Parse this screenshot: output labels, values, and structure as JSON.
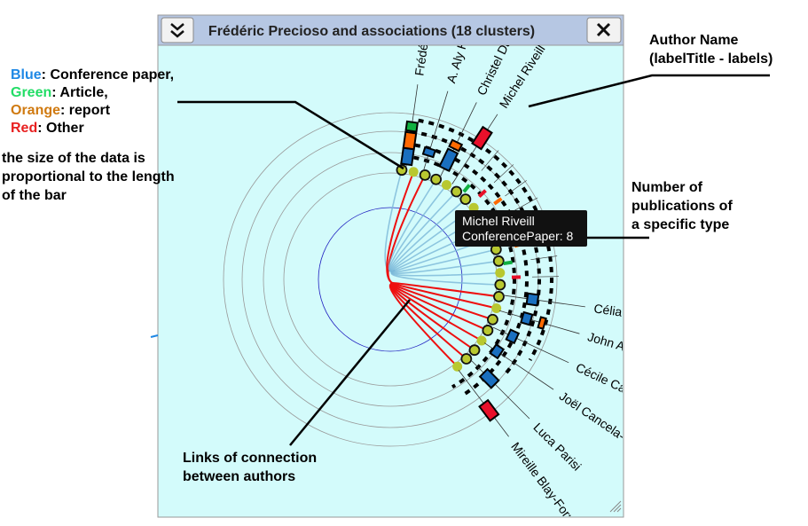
{
  "window": {
    "title": "Frédéric Precioso and associations (18 clusters)"
  },
  "authors": [
    "Frédéric Pr",
    "A. Aly Halim",
    "Christel Dartigu",
    "Michel Riveill",
    "Célia da Co",
    "John Anderso",
    "Cécile Camillieri",
    "Joël Cancela-Vaz",
    "Luca Parisi",
    "Mireille Blay-Fornarin"
  ],
  "tooltip": {
    "name": "Michel Riveill",
    "detail": "ConferencePaper: 8"
  },
  "legend": [
    {
      "color_name": "Blue",
      "text": ": Conference paper,"
    },
    {
      "color_name": "Green",
      "text": ": Article,"
    },
    {
      "color_name": "Orange",
      "text": ": report"
    },
    {
      "color_name": "Red",
      "text": ": Other"
    }
  ],
  "annotations": {
    "bar_size": [
      "the size of the data is",
      "proportional to the length",
      "of the bar"
    ],
    "author_name": [
      "Author Name",
      "(labelTitle - labels)"
    ],
    "publications": [
      "Number of",
      "publications of",
      "a specific type"
    ],
    "links": [
      "Links of connection",
      "between authors"
    ]
  }
}
